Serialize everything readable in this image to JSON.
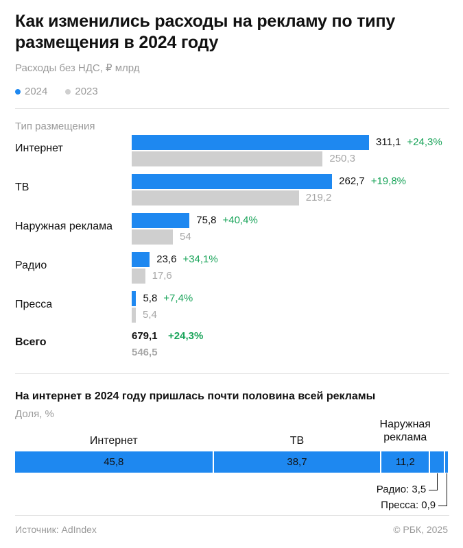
{
  "title": "Как изменились расходы на рекламу по типу размещения в 2024 году",
  "subtitle": "Расходы без НДС, ₽ млрд",
  "legend": [
    {
      "label": "2024",
      "color": "#1e88f0"
    },
    {
      "label": "2023",
      "color": "#cfcfcf"
    }
  ],
  "column_label": "Тип размещения",
  "total": {
    "label": "Всего",
    "value_2024": "679,1",
    "value_2023": "546,5",
    "growth": "+24,3%"
  },
  "section2": {
    "title": "На интернет в 2024 году пришлась почти половина всей рекламы",
    "subtitle": "Доля, %"
  },
  "footer": {
    "source": "Источник: AdIndex",
    "copyright": "© РБК, 2025"
  },
  "colors": {
    "bar_2024": "#1e88f0",
    "bar_2023": "#cfcfcf",
    "growth": "#1aa45a"
  },
  "chart_data": [
    {
      "type": "bar",
      "orientation": "horizontal",
      "categories": [
        "Интернет",
        "ТВ",
        "Наружная реклама",
        "Радио",
        "Пресса"
      ],
      "series": [
        {
          "name": "2024",
          "values": [
            311.1,
            262.7,
            75.8,
            23.6,
            5.8
          ],
          "labels": [
            "311,1",
            "262,7",
            "75,8",
            "23,6",
            "5,8"
          ]
        },
        {
          "name": "2023",
          "values": [
            250.3,
            219.2,
            54,
            17.6,
            5.4
          ],
          "labels": [
            "250,3",
            "219,2",
            "54",
            "17,6",
            "5,4"
          ]
        }
      ],
      "growth_labels": [
        "+24,3%",
        "+19,8%",
        "+40,4%",
        "+34,1%",
        "+7,4%"
      ],
      "title": "Как изменились расходы на рекламу по типу размещения в 2024 году",
      "xlabel": "",
      "ylabel": "Тип размещения",
      "xlim": [
        0,
        311.1
      ],
      "grid": false,
      "legend": "top-left"
    },
    {
      "type": "bar",
      "orientation": "horizontal-stacked",
      "categories": [
        "Интернет",
        "ТВ",
        "Наружная реклама",
        "Радио",
        "Пресса"
      ],
      "category_labels": [
        "Интернет",
        "ТВ",
        "Наружная реклама",
        "Радио: 3,5",
        "Пресса: 0,9"
      ],
      "values": [
        45.8,
        38.7,
        11.2,
        3.5,
        0.9
      ],
      "value_labels": [
        "45,8",
        "38,7",
        "11,2",
        "",
        ""
      ],
      "title": "На интернет в 2024 году пришлась почти половина всей рекламы",
      "xlabel": "",
      "ylabel": "Доля, %",
      "xlim": [
        0,
        100.1
      ],
      "grid": false
    }
  ]
}
